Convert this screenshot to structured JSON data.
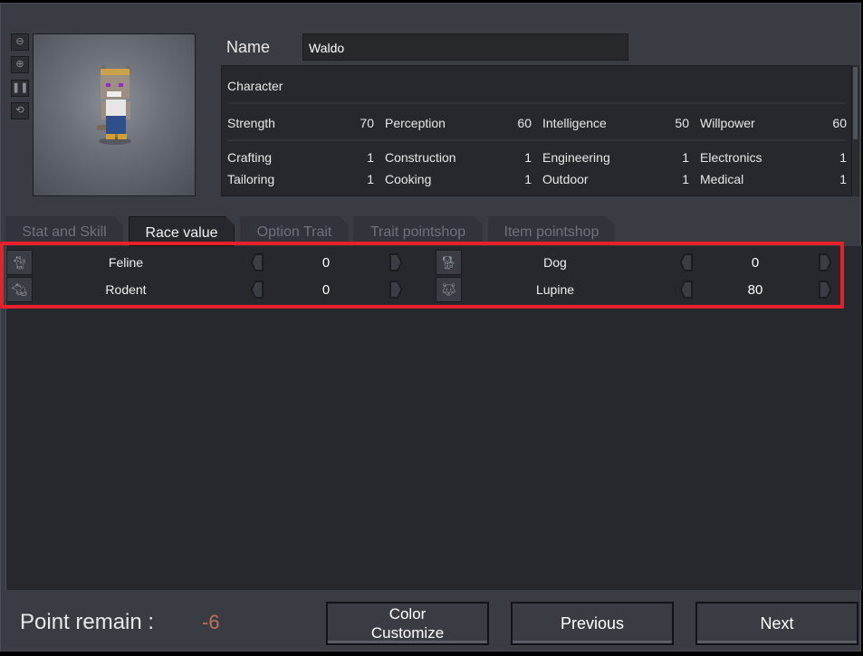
{
  "toolbar": {
    "zoom_out": "zoom-out",
    "zoom_in": "zoom-in",
    "footprints": "footprints",
    "rotate": "rotate"
  },
  "name": {
    "label": "Name",
    "value": "Waldo"
  },
  "character": {
    "section": "Character",
    "stats": [
      {
        "label": "Strength",
        "value": "70"
      },
      {
        "label": "Perception",
        "value": "60"
      },
      {
        "label": "Intelligence",
        "value": "50"
      },
      {
        "label": "Willpower",
        "value": "60"
      }
    ],
    "skills": [
      {
        "label": "Crafting",
        "value": "1"
      },
      {
        "label": "Construction",
        "value": "1"
      },
      {
        "label": "Engineering",
        "value": "1"
      },
      {
        "label": "Electronics",
        "value": "1"
      },
      {
        "label": "Tailoring",
        "value": "1"
      },
      {
        "label": "Cooking",
        "value": "1"
      },
      {
        "label": "Outdoor",
        "value": "1"
      },
      {
        "label": "Medical",
        "value": "1"
      }
    ]
  },
  "tabs": [
    {
      "label": "Stat and Skill"
    },
    {
      "label": "Race value",
      "active": true
    },
    {
      "label": "Option Trait"
    },
    {
      "label": "Trait pointshop"
    },
    {
      "label": "Item pointshop"
    }
  ],
  "races": [
    {
      "label": "Feline",
      "value": "0",
      "icon": "cat-icon"
    },
    {
      "label": "Dog",
      "value": "0",
      "icon": "dog-icon"
    },
    {
      "label": "Rodent",
      "value": "0",
      "icon": "rodent-icon"
    },
    {
      "label": "Lupine",
      "value": "80",
      "icon": "wolf-icon"
    }
  ],
  "footer": {
    "point_label": "Point remain :",
    "point_value": "-6",
    "color_customize_line1": "Color",
    "color_customize_line2": "Customize",
    "previous": "Previous",
    "next": "Next"
  },
  "colors": {
    "highlight": "#e8202a",
    "negative_points": "#c0705a"
  }
}
